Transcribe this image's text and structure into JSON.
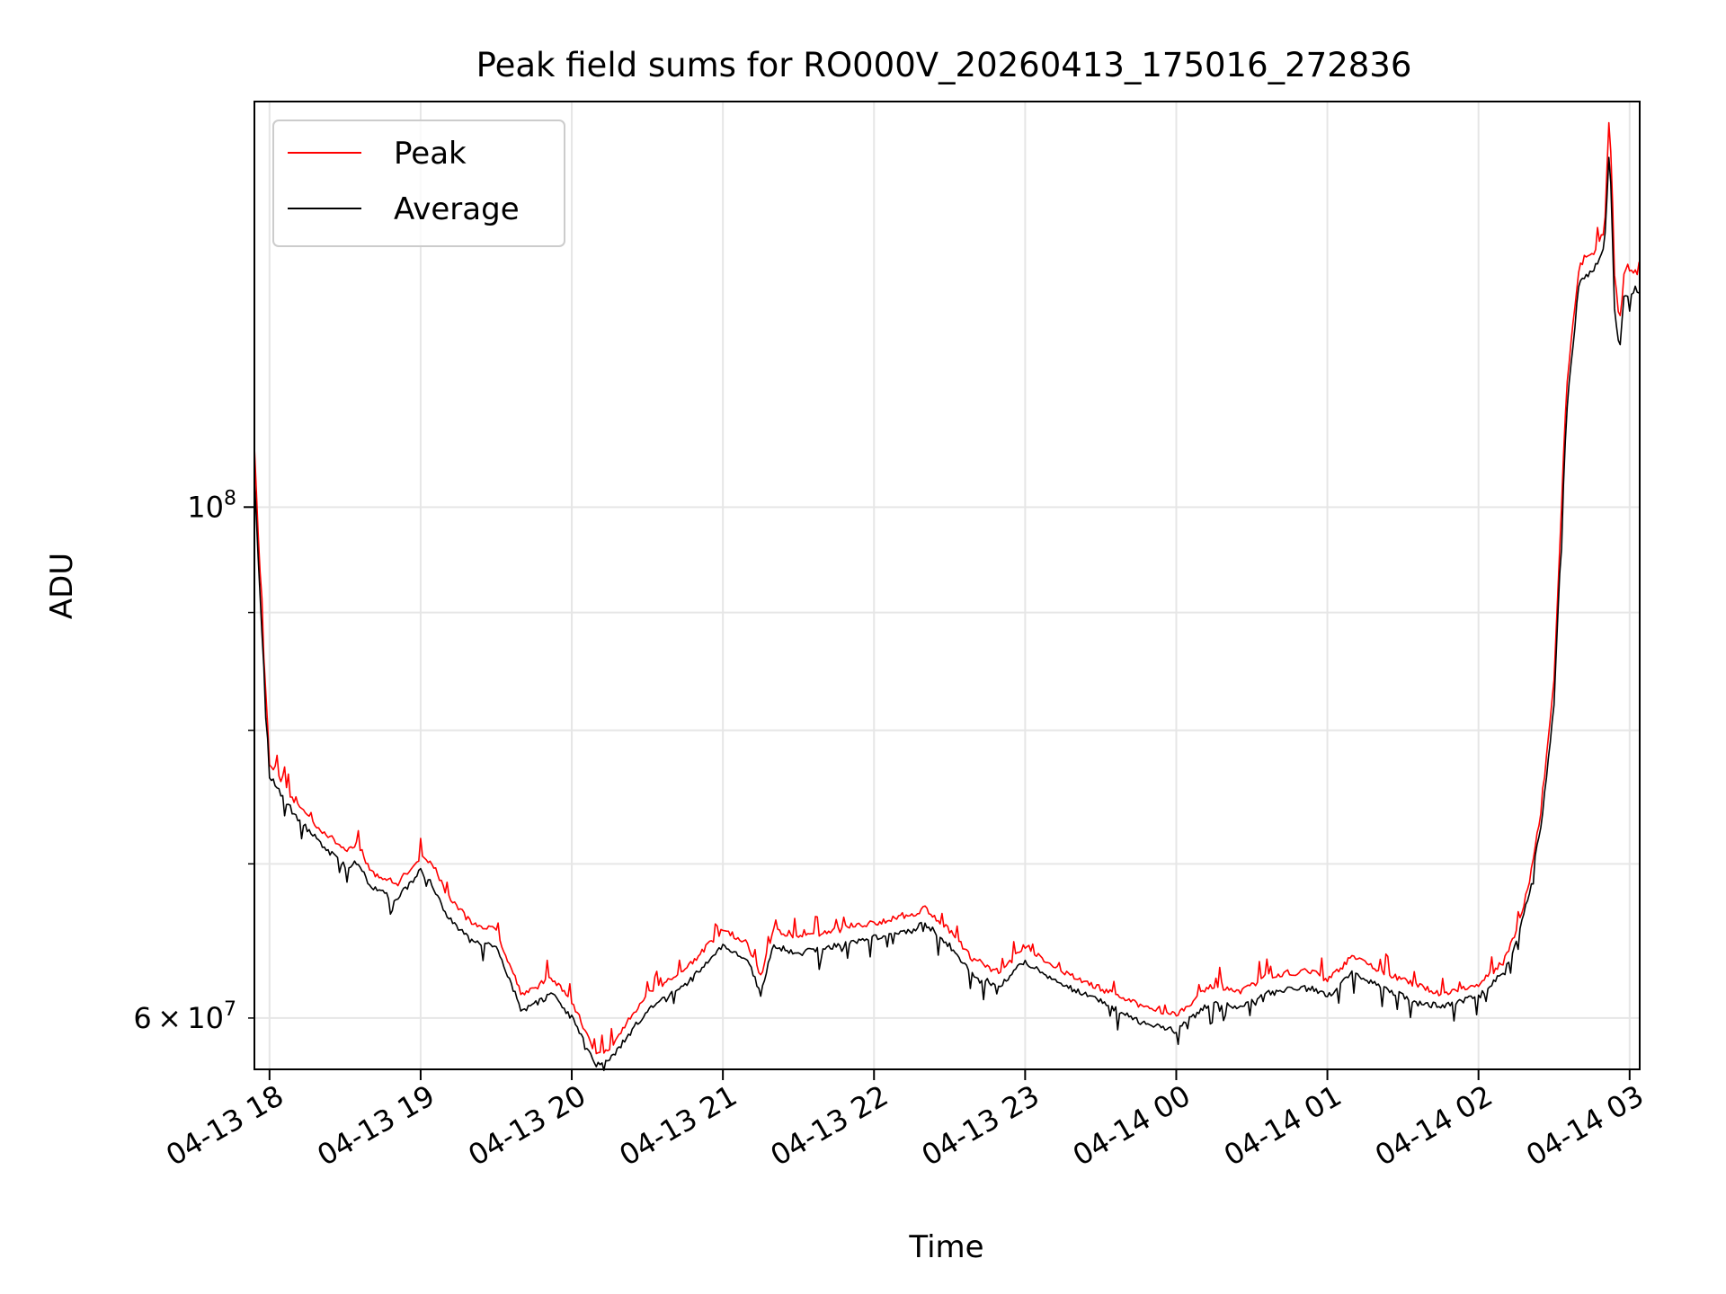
{
  "chart_data": {
    "type": "line",
    "title": "Peak field sums for RO000V_20260413_175016_272836",
    "xlabel": "Time",
    "ylabel": "ADU",
    "yscale": "log",
    "x_range": [
      "2026-04-13 17:54",
      "2026-04-14 03:04"
    ],
    "ylim": [
      57000000,
      150000000
    ],
    "grid": true,
    "legend_position": "upper-left",
    "x_ticks": [
      "04-13 18",
      "04-13 19",
      "04-13 20",
      "04-13 21",
      "04-13 22",
      "04-13 23",
      "04-14 00",
      "04-14 01",
      "04-14 02",
      "04-14 03"
    ],
    "y_major_tick": {
      "value": 100000000,
      "base": "10",
      "exp": "8"
    },
    "y_labeled_minor_tick": {
      "value": 60000000,
      "mant": "6",
      "base": "10",
      "exp": "7"
    },
    "y_minor_ticks": [
      60000000,
      70000000,
      80000000,
      90000000
    ],
    "series": [
      {
        "name": "Peak",
        "color": "#ff0000",
        "x": [
          "2026-04-13 17:54",
          "2026-04-13 17:56",
          "2026-04-13 17:58",
          "2026-04-13 18:00",
          "2026-04-13 18:10",
          "2026-04-13 18:20",
          "2026-04-13 18:30",
          "2026-04-13 18:35",
          "2026-04-13 18:40",
          "2026-04-13 18:50",
          "2026-04-13 19:00",
          "2026-04-13 19:05",
          "2026-04-13 19:10",
          "2026-04-13 19:20",
          "2026-04-13 19:30",
          "2026-04-13 19:40",
          "2026-04-13 19:45",
          "2026-04-13 19:52",
          "2026-04-13 20:00",
          "2026-04-13 20:10",
          "2026-04-13 20:15",
          "2026-04-13 20:30",
          "2026-04-13 20:45",
          "2026-04-13 21:00",
          "2026-04-13 21:10",
          "2026-04-13 21:15",
          "2026-04-13 21:20",
          "2026-04-13 21:30",
          "2026-04-13 21:45",
          "2026-04-13 22:00",
          "2026-04-13 22:15",
          "2026-04-13 22:20",
          "2026-04-13 22:30",
          "2026-04-13 22:40",
          "2026-04-13 22:50",
          "2026-04-13 23:00",
          "2026-04-13 23:15",
          "2026-04-13 23:30",
          "2026-04-13 23:45",
          "2026-04-14 00:00",
          "2026-04-14 00:10",
          "2026-04-14 00:15",
          "2026-04-14 00:25",
          "2026-04-14 00:35",
          "2026-04-14 00:45",
          "2026-04-14 00:55",
          "2026-04-14 01:00",
          "2026-04-14 01:10",
          "2026-04-14 01:20",
          "2026-04-14 01:35",
          "2026-04-14 01:45",
          "2026-04-14 02:00",
          "2026-04-14 02:10",
          "2026-04-14 02:15",
          "2026-04-14 02:20",
          "2026-04-14 02:25",
          "2026-04-14 02:30",
          "2026-04-14 02:35",
          "2026-04-14 02:40",
          "2026-04-14 02:45",
          "2026-04-14 02:50",
          "2026-04-14 02:52",
          "2026-04-14 02:54",
          "2026-04-14 02:56",
          "2026-04-14 02:58",
          "2026-04-14 03:00",
          "2026-04-14 03:02",
          "2026-04-14 03:04"
        ],
        "y": [
          106000000,
          95000000,
          85000000,
          77500000,
          74500000,
          72500000,
          71000000,
          71500000,
          69500000,
          68500000,
          70500000,
          70000000,
          68000000,
          66000000,
          65500000,
          61500000,
          61800000,
          62500000,
          61000000,
          57800000,
          58200000,
          61500000,
          63000000,
          65500000,
          64500000,
          62500000,
          65500000,
          65000000,
          65500000,
          66000000,
          66500000,
          67000000,
          65500000,
          63500000,
          62800000,
          64500000,
          62800000,
          61800000,
          60800000,
          60200000,
          61500000,
          62000000,
          61500000,
          62500000,
          62800000,
          62800000,
          62300000,
          63800000,
          63000000,
          62000000,
          61500000,
          62000000,
          63500000,
          65500000,
          68500000,
          74000000,
          84000000,
          113000000,
          127500000,
          128500000,
          132000000,
          149000000,
          126000000,
          120000000,
          127000000,
          126000000,
          127000000,
          126000000
        ]
      },
      {
        "name": "Average",
        "color": "#000000",
        "x": [
          "2026-04-13 17:54",
          "2026-04-13 17:56",
          "2026-04-13 17:58",
          "2026-04-13 18:00",
          "2026-04-13 18:10",
          "2026-04-13 18:20",
          "2026-04-13 18:30",
          "2026-04-13 18:35",
          "2026-04-13 18:40",
          "2026-04-13 18:50",
          "2026-04-13 19:00",
          "2026-04-13 19:05",
          "2026-04-13 19:10",
          "2026-04-13 19:20",
          "2026-04-13 19:30",
          "2026-04-13 19:40",
          "2026-04-13 19:45",
          "2026-04-13 19:52",
          "2026-04-13 20:00",
          "2026-04-13 20:10",
          "2026-04-13 20:15",
          "2026-04-13 20:30",
          "2026-04-13 20:45",
          "2026-04-13 21:00",
          "2026-04-13 21:10",
          "2026-04-13 21:15",
          "2026-04-13 21:20",
          "2026-04-13 21:30",
          "2026-04-13 21:45",
          "2026-04-13 22:00",
          "2026-04-13 22:15",
          "2026-04-13 22:20",
          "2026-04-13 22:30",
          "2026-04-13 22:40",
          "2026-04-13 22:50",
          "2026-04-13 23:00",
          "2026-04-13 23:15",
          "2026-04-13 23:30",
          "2026-04-13 23:45",
          "2026-04-14 00:00",
          "2026-04-14 00:10",
          "2026-04-14 00:15",
          "2026-04-14 00:25",
          "2026-04-14 00:35",
          "2026-04-14 00:45",
          "2026-04-14 00:55",
          "2026-04-14 01:00",
          "2026-04-14 01:10",
          "2026-04-14 01:20",
          "2026-04-14 01:35",
          "2026-04-14 01:45",
          "2026-04-14 02:00",
          "2026-04-14 02:10",
          "2026-04-14 02:15",
          "2026-04-14 02:20",
          "2026-04-14 02:25",
          "2026-04-14 02:30",
          "2026-04-14 02:35",
          "2026-04-14 02:40",
          "2026-04-14 02:45",
          "2026-04-14 02:50",
          "2026-04-14 02:52",
          "2026-04-14 02:54",
          "2026-04-14 02:56",
          "2026-04-14 02:58",
          "2026-04-14 03:00",
          "2026-04-14 03:02",
          "2026-04-14 03:04"
        ],
        "y": [
          103000000,
          93000000,
          84000000,
          76500000,
          73500000,
          71500000,
          69800000,
          70200000,
          68500000,
          67500000,
          69500000,
          68500000,
          66500000,
          64800000,
          64500000,
          60500000,
          60800000,
          61500000,
          60000000,
          57200000,
          57500000,
          60500000,
          62000000,
          64500000,
          63500000,
          61500000,
          64500000,
          64000000,
          64500000,
          65000000,
          65500000,
          66000000,
          64500000,
          62500000,
          62000000,
          63500000,
          62000000,
          61000000,
          59800000,
          59300000,
          60500000,
          61000000,
          60500000,
          61500000,
          61800000,
          61800000,
          61300000,
          62800000,
          62000000,
          61000000,
          60700000,
          61300000,
          62800000,
          64800000,
          67800000,
          73000000,
          82000000,
          110000000,
          125500000,
          126500000,
          129500000,
          144000000,
          122000000,
          117000000,
          124000000,
          123500000,
          124500000,
          123500000
        ]
      }
    ]
  }
}
